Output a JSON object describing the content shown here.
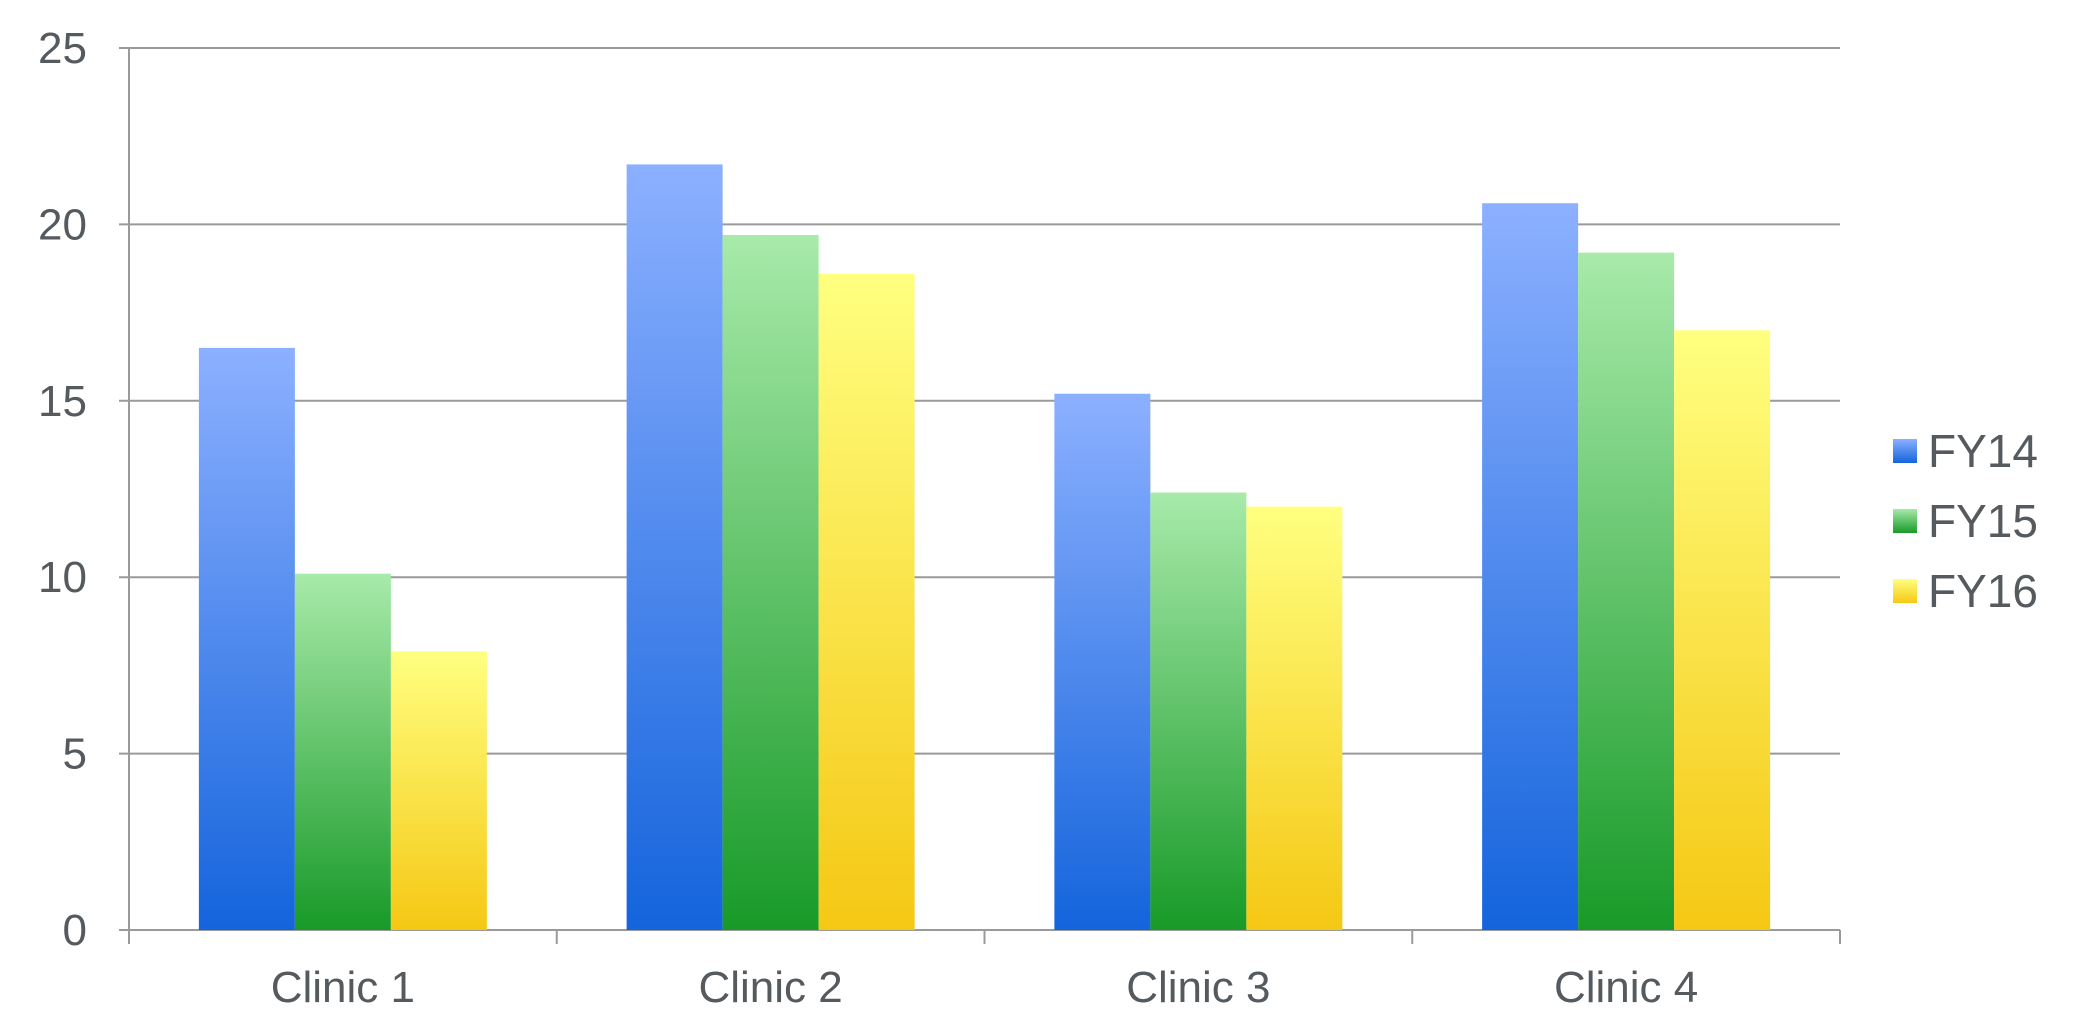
{
  "chart_data": {
    "type": "bar",
    "title": "",
    "xlabel": "",
    "ylabel": "",
    "categories": [
      "Clinic 1",
      "Clinic 2",
      "Clinic 3",
      "Clinic 4"
    ],
    "series": [
      {
        "name": "FY14",
        "values": [
          16.5,
          21.7,
          15.2,
          20.6
        ],
        "color_top": "#8cb0ff",
        "color_bottom": "#1464dc"
      },
      {
        "name": "FY15",
        "values": [
          10.1,
          19.7,
          12.4,
          19.2
        ],
        "color_top": "#a8eaaa",
        "color_bottom": "#189a28"
      },
      {
        "name": "FY16",
        "values": [
          7.9,
          18.6,
          12.0,
          17.0
        ],
        "color_top": "#ffff80",
        "color_bottom": "#f5c814"
      }
    ],
    "ylim": [
      0,
      25
    ],
    "yticks": [
      "0",
      "5",
      "10",
      "15",
      "20",
      "25"
    ],
    "grid": true,
    "legend_position": "right"
  }
}
